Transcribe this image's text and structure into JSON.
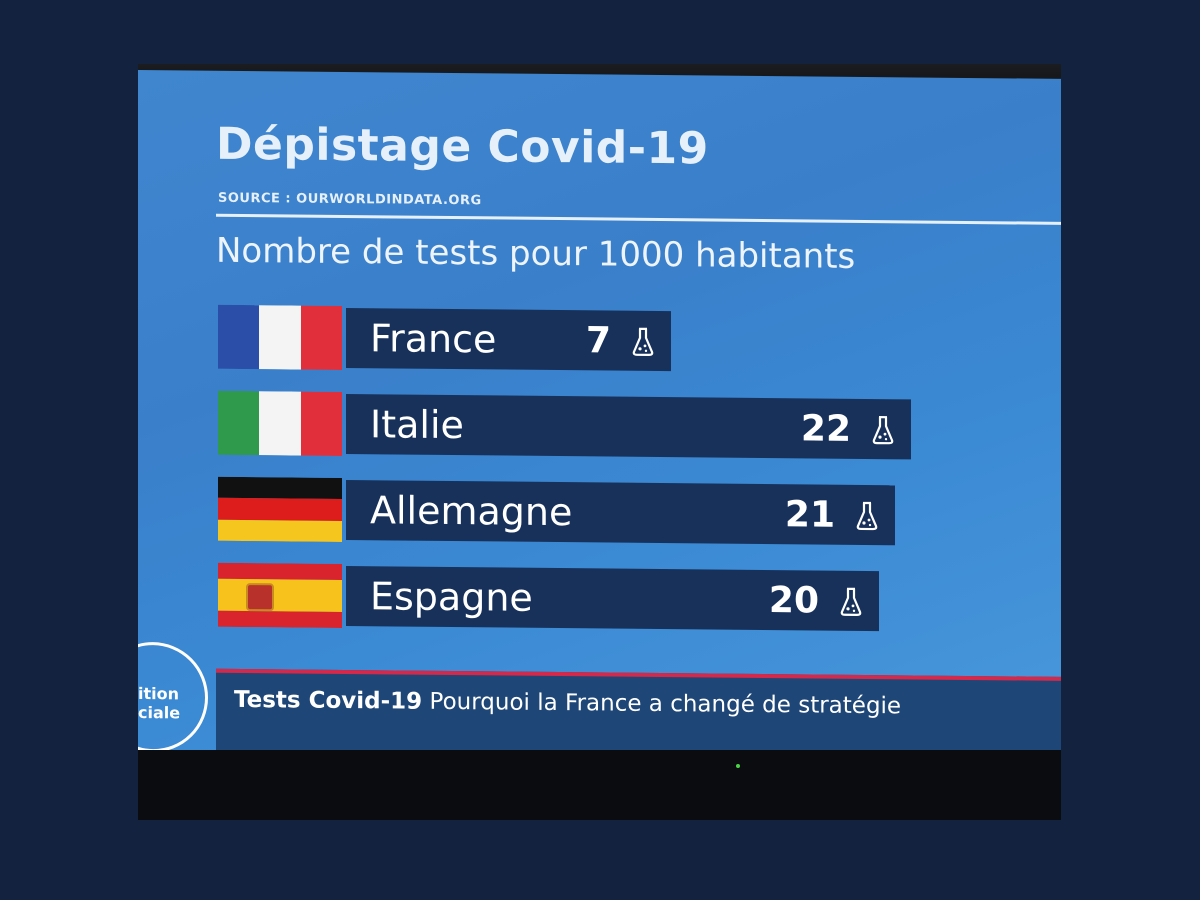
{
  "chart_data": {
    "type": "bar",
    "title": "Dépistage Covid-19",
    "source": "SOURCE : OURWORLDINDATA.ORG",
    "subtitle": "Nombre de tests pour 1000 habitants",
    "categories": [
      "France",
      "Italie",
      "Allemagne",
      "Espagne"
    ],
    "values": [
      7,
      22,
      21,
      20
    ],
    "value_labels": [
      "7",
      "22",
      "21",
      "20"
    ],
    "flags": [
      "france-flag",
      "italy-flag",
      "germany-flag",
      "spain-flag"
    ],
    "orientation": "horizontal",
    "grid": false,
    "value_icon": "flask-icon"
  },
  "ticker": {
    "bold": "Tests Covid-19",
    "text": "Pourquoi la France a changé de stratégie"
  },
  "logo": {
    "line1": "ition",
    "line2": "ciale"
  },
  "colors": {
    "background": "#3f86cf",
    "bar": "#17315a",
    "ticker_accent": "#d4294b",
    "text": "#ffffff"
  }
}
